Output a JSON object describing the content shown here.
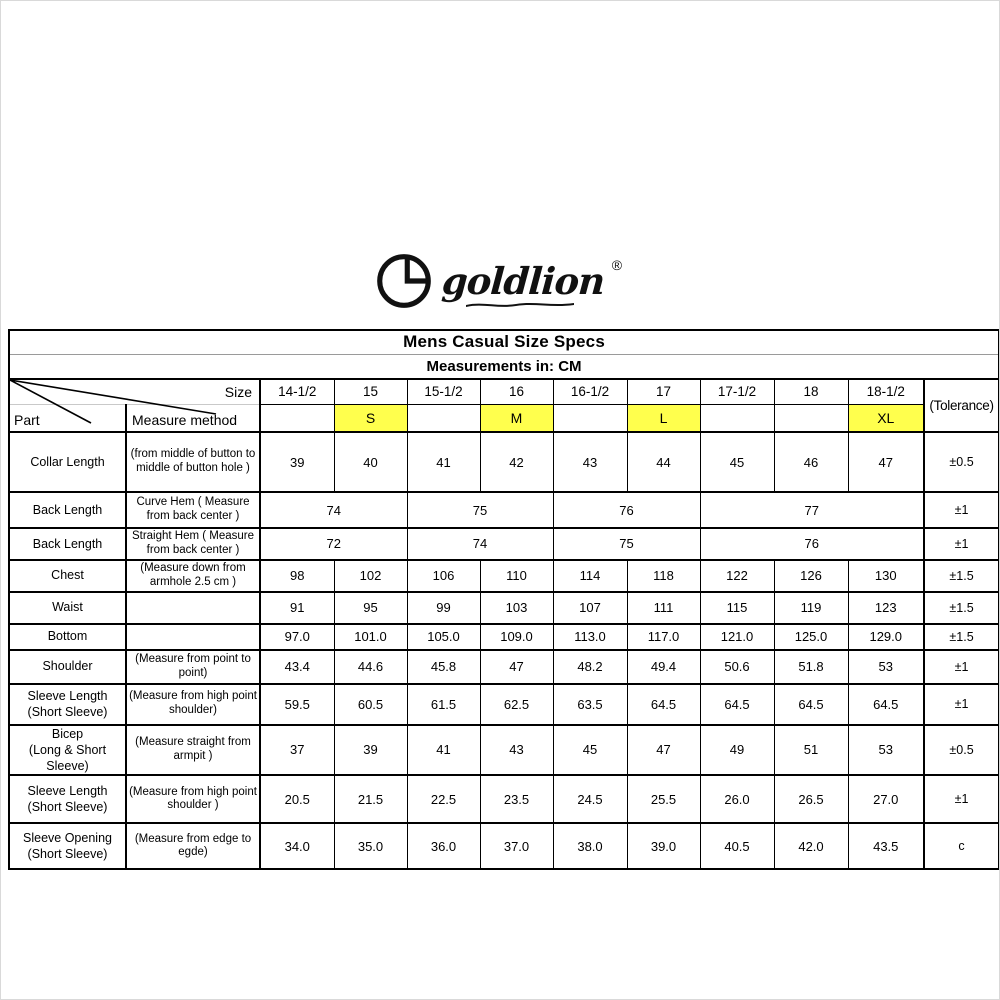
{
  "logo": {
    "brand": "goldlion",
    "registered": "®"
  },
  "table": {
    "title": "Mens Casual Size Specs",
    "subtitle": "Measurements in: CM",
    "corner": {
      "size_label": "Size",
      "part_label": "Part",
      "measure_label": "Measure method"
    },
    "tolerance_header": "(Tolerance)",
    "highlight_color": "#FFFF4D",
    "sizes": [
      "14-1/2",
      "15",
      "15-1/2",
      "16",
      "16-1/2",
      "17",
      "17-1/2",
      "18",
      "18-1/2"
    ],
    "size_tags": [
      "",
      "S",
      "",
      "M",
      "",
      "L",
      "",
      "",
      "XL"
    ],
    "rows": [
      {
        "part": "Collar Length",
        "method": "(from middle of button to middle of button hole )",
        "values": [
          "39",
          "40",
          "41",
          "42",
          "43",
          "44",
          "45",
          "46",
          "47"
        ],
        "tolerance": "±0.5"
      },
      {
        "part": "Back Length",
        "method": "Curve Hem ( Measure from back center )",
        "merged": [
          {
            "value": "74",
            "span": 2
          },
          {
            "value": "75",
            "span": 2
          },
          {
            "value": "76",
            "span": 2
          },
          {
            "value": "77",
            "span": 3
          }
        ],
        "tolerance": "±1"
      },
      {
        "part": "Back Length",
        "method": "Straight Hem ( Measure from back center )",
        "merged": [
          {
            "value": "72",
            "span": 2
          },
          {
            "value": "74",
            "span": 2
          },
          {
            "value": "75",
            "span": 2
          },
          {
            "value": "76",
            "span": 3
          }
        ],
        "tolerance": "±1"
      },
      {
        "part": "Chest",
        "method": "(Measure down from armhole 2.5 cm )",
        "values": [
          "98",
          "102",
          "106",
          "110",
          "114",
          "118",
          "122",
          "126",
          "130"
        ],
        "tolerance": "±1.5"
      },
      {
        "part": "Waist",
        "method": "",
        "values": [
          "91",
          "95",
          "99",
          "103",
          "107",
          "111",
          "115",
          "119",
          "123"
        ],
        "tolerance": "±1.5"
      },
      {
        "part": "Bottom",
        "method": "",
        "values": [
          "97.0",
          "101.0",
          "105.0",
          "109.0",
          "113.0",
          "117.0",
          "121.0",
          "125.0",
          "129.0"
        ],
        "tolerance": "±1.5"
      },
      {
        "part": "Shoulder",
        "method": "(Measure from point to point)",
        "values": [
          "43.4",
          "44.6",
          "45.8",
          "47",
          "48.2",
          "49.4",
          "50.6",
          "51.8",
          "53"
        ],
        "tolerance": "±1"
      },
      {
        "part": "Sleeve Length\n(Short Sleeve)",
        "method": "(Measure from high point shoulder)",
        "values": [
          "59.5",
          "60.5",
          "61.5",
          "62.5",
          "63.5",
          "64.5",
          "64.5",
          "64.5",
          "64.5"
        ],
        "tolerance": "±1"
      },
      {
        "part": "Bicep\n(Long & Short Sleeve)",
        "method": "(Measure straight from armpit )",
        "values": [
          "37",
          "39",
          "41",
          "43",
          "45",
          "47",
          "49",
          "51",
          "53"
        ],
        "tolerance": "±0.5"
      },
      {
        "part": "Sleeve Length\n(Short Sleeve)",
        "method": "(Measure from high point shoulder )",
        "values": [
          "20.5",
          "21.5",
          "22.5",
          "23.5",
          "24.5",
          "25.5",
          "26.0",
          "26.5",
          "27.0"
        ],
        "tolerance": "±1"
      },
      {
        "part": "Sleeve Opening\n(Short Sleeve)",
        "method": "(Measure from edge to egde)",
        "values": [
          "34.0",
          "35.0",
          "36.0",
          "37.0",
          "38.0",
          "39.0",
          "40.5",
          "42.0",
          "43.5"
        ],
        "tolerance": "c"
      }
    ]
  }
}
